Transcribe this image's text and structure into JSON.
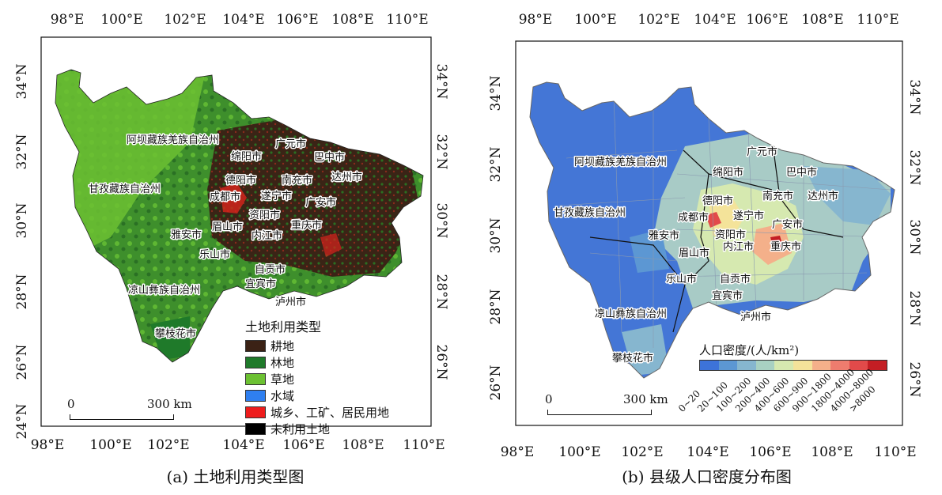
{
  "panel_a": {
    "caption": "(a) 土地利用类型图",
    "top_ticks": [
      "98°E",
      "100°E",
      "102°E",
      "104°E",
      "106°E",
      "108°E",
      "110°E"
    ],
    "bottom_ticks": [
      "98°E",
      "100°E",
      "102°E",
      "104°E",
      "106°E",
      "108°E",
      "110°E"
    ],
    "left_ticks": [
      "34°N",
      "32°N",
      "30°N",
      "28°N",
      "26°N",
      "24°N"
    ],
    "right_ticks": [
      "34°N",
      "32°N",
      "30°N",
      "28°N",
      "26°N"
    ],
    "cities": [
      "阿坝藏族羌族自治州",
      "广元市",
      "绵阳市",
      "巴中市",
      "德阳市",
      "南充市",
      "达州市",
      "甘孜藏族自治州",
      "成都市",
      "遂宁市",
      "广安市",
      "资阳市",
      "眉山市",
      "重庆市",
      "雅安市",
      "内江市",
      "乐山市",
      "自贡市",
      "凉山彝族自治州",
      "宜宾市",
      "泸州市",
      "攀枝花市"
    ],
    "legend_title": "土地利用类型",
    "legend": [
      {
        "label": "耕地",
        "color": "#3b2215"
      },
      {
        "label": "林地",
        "color": "#1f7a2a"
      },
      {
        "label": "草地",
        "color": "#6cc132"
      },
      {
        "label": "水域",
        "color": "#2f7ff0"
      },
      {
        "label": "城乡、工矿、居民用地",
        "color": "#ee1c1c"
      },
      {
        "label": "未利用土地",
        "color": "#000000"
      }
    ],
    "scale_zero": "0",
    "scale_end": "300 km"
  },
  "panel_b": {
    "caption": "(b) 县级人口密度分布图",
    "top_ticks": [
      "98°E",
      "100°E",
      "102°E",
      "104°E",
      "106°E",
      "108°E",
      "110°E"
    ],
    "bottom_ticks": [
      "98°E",
      "100°E",
      "102°E",
      "104°E",
      "106°E",
      "108°E",
      "110°E"
    ],
    "left_ticks": [
      "34°N",
      "32°N",
      "30°N",
      "28°N",
      "26°N"
    ],
    "right_ticks": [
      "34°N",
      "32°N",
      "30°N",
      "28°N",
      "26°N"
    ],
    "cities": [
      "阿坝藏族羌族自治州",
      "广元市",
      "绵阳市",
      "巴中市",
      "德阳市",
      "南充市",
      "达州市",
      "甘孜藏族自治州",
      "成都市",
      "遂宁市",
      "广安市",
      "资阳市",
      "眉山市",
      "重庆市",
      "雅安市",
      "内江市",
      "乐山市",
      "自贡市",
      "凉山彝族自治州",
      "宜宾市",
      "泸州市",
      "攀枝花市"
    ],
    "legend_title": "人口密度/(人/km²)",
    "legend": [
      {
        "label": "0~20",
        "color": "#3d73d9"
      },
      {
        "label": "20~100",
        "color": "#5c97d3"
      },
      {
        "label": "100~200",
        "color": "#86b6cf"
      },
      {
        "label": "200~400",
        "color": "#a8d1c2"
      },
      {
        "label": "400~600",
        "color": "#d6e9b0"
      },
      {
        "label": "600~900",
        "color": "#f4e39a"
      },
      {
        "label": "900~1800",
        "color": "#f4b08a"
      },
      {
        "label": "1800~4000",
        "color": "#ee7c6e"
      },
      {
        "label": "4000~8000",
        "color": "#e24a4a"
      },
      {
        "label": ">8000",
        "color": "#c41e24"
      }
    ],
    "scale_zero": "0",
    "scale_end": "300 km"
  }
}
